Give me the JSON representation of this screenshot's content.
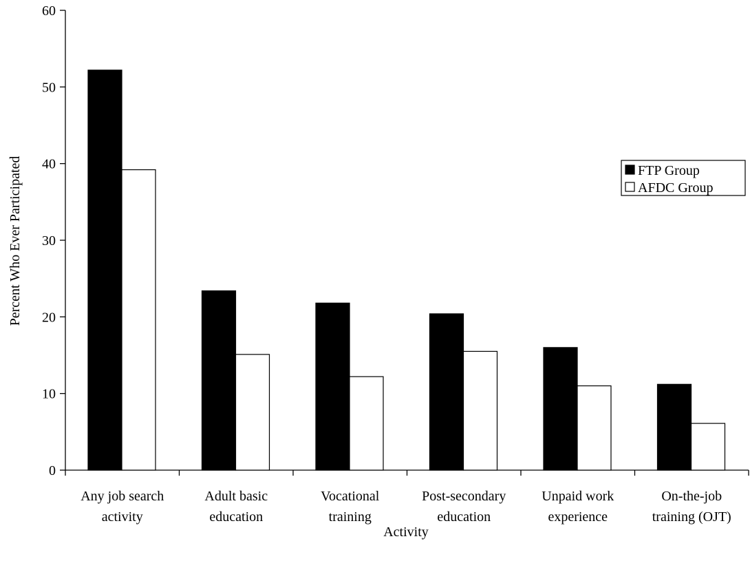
{
  "chart_data": {
    "type": "bar",
    "categories": [
      "Any job search\nactivity",
      "Adult basic\neducation",
      "Vocational\ntraining",
      "Post-secondary\neducation",
      "Unpaid work\nexperience",
      "On-the-job\ntraining (OJT)"
    ],
    "series": [
      {
        "name": "FTP Group",
        "color": "#000000",
        "values": [
          52.2,
          23.4,
          21.8,
          20.4,
          16.0,
          11.2
        ]
      },
      {
        "name": "AFDC Group",
        "color": "#ffffff",
        "values": [
          39.2,
          15.1,
          12.2,
          15.5,
          11.0,
          6.1
        ]
      }
    ],
    "xlabel": "Activity",
    "ylabel": "Percent Who Ever Participated",
    "ylim": [
      0,
      60
    ],
    "yticks": [
      0,
      10,
      20,
      30,
      40,
      50,
      60
    ],
    "grid": false,
    "legend": "right"
  }
}
